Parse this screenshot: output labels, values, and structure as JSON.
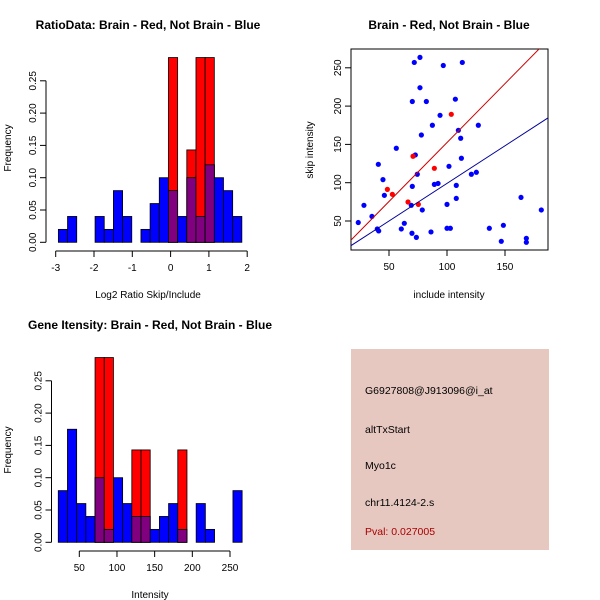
{
  "colors": {
    "brain": "#ff0000",
    "not_brain": "#0000ff",
    "overlap": "#800080",
    "brain_line": "#cc0000",
    "not_brain_line": "#000099",
    "panel": "#e6c8c0",
    "pval": "#aa0000"
  },
  "chart_data": [
    {
      "type": "bar",
      "title": "RatioData: Brain - Red, Not Brain - Blue",
      "xlabel": "Log2 Ratio Skip/Include",
      "ylabel": "Frequency",
      "bin_start": -2.93,
      "bin_width": 0.2395,
      "xlim": [
        -3,
        2
      ],
      "ylim": [
        0,
        0.286
      ],
      "xticks": [
        -3,
        -2,
        -1,
        0,
        1,
        2
      ],
      "yticks": [
        0,
        0.05,
        0.1,
        0.15,
        0.2,
        0.25
      ],
      "ytick_labels": [
        "0.00",
        "0.05",
        "0.10",
        "0.15",
        "0.20",
        "0.25"
      ],
      "series": [
        {
          "name": "Not Brain",
          "color": "blue",
          "values": [
            0.02,
            0.04,
            0,
            0,
            0.04,
            0.02,
            0.08,
            0.04,
            0,
            0.02,
            0.06,
            0.1,
            0.08,
            0.04,
            0.1,
            0.04,
            0.12,
            0.1,
            0.08,
            0.04
          ]
        },
        {
          "name": "Brain",
          "color": "red",
          "values": [
            0,
            0,
            0,
            0,
            0,
            0,
            0,
            0,
            0,
            0,
            0,
            0,
            0.286,
            0,
            0.143,
            0.286,
            0.286,
            0,
            0,
            0
          ]
        }
      ]
    },
    {
      "type": "scatter",
      "title": "Brain - Red, Not Brain - Blue",
      "xlabel": "include intensity",
      "ylabel": "skip intensity",
      "xlim": [
        17,
        187
      ],
      "ylim": [
        12,
        274
      ],
      "xticks": [
        50,
        100,
        150
      ],
      "yticks": [
        50,
        100,
        150,
        200,
        250
      ],
      "series": [
        {
          "name": "Not Brain",
          "color": "blue",
          "fit": {
            "slope": 0.982,
            "intercept": 0.9
          },
          "points": [
            [
              23.5,
              48
            ],
            [
              28.4,
              70.5
            ],
            [
              35.3,
              56
            ],
            [
              39.9,
              39.6
            ],
            [
              41.1,
              37
            ],
            [
              40.8,
              124
            ],
            [
              44.8,
              104
            ],
            [
              46,
              83.5
            ],
            [
              56.3,
              145
            ],
            [
              60.6,
              39.6
            ],
            [
              63.2,
              47
            ],
            [
              69.8,
              34
            ],
            [
              73.6,
              28.6
            ],
            [
              69.2,
              70.5
            ],
            [
              70.1,
              95.2
            ],
            [
              70.1,
              206
            ],
            [
              71.8,
              257
            ],
            [
              76.7,
              263.6
            ],
            [
              76.7,
              224
            ],
            [
              82.2,
              206
            ],
            [
              72.7,
              136.2
            ],
            [
              74.4,
              111
            ],
            [
              77.9,
              162.3
            ],
            [
              78.7,
              64.4
            ],
            [
              86.2,
              35.7
            ],
            [
              87.4,
              175
            ],
            [
              89.1,
              97.8
            ],
            [
              92.3,
              99
            ],
            [
              94,
              188
            ],
            [
              96.8,
              253
            ],
            [
              100,
              71.7
            ],
            [
              101.7,
              121.4
            ],
            [
              100,
              40.5
            ],
            [
              102.9,
              40.5
            ],
            [
              107.2,
              209
            ],
            [
              108,
              96.5
            ],
            [
              108,
              79.5
            ],
            [
              109.8,
              168.4
            ],
            [
              111.8,
              158
            ],
            [
              112.4,
              131.9
            ],
            [
              113.2,
              257
            ],
            [
              121,
              111
            ],
            [
              125.3,
              113.6
            ],
            [
              127,
              175
            ],
            [
              136.5,
              40.5
            ],
            [
              146.8,
              23.5
            ],
            [
              148.6,
              44.4
            ],
            [
              163.8,
              80.8
            ],
            [
              168.4,
              27.4
            ],
            [
              168.4,
              22.2
            ],
            [
              181.3,
              64.4
            ]
          ]
        },
        {
          "name": "Brain",
          "color": "red",
          "fit": {
            "slope": 1.539,
            "intercept": -1.5
          },
          "points": [
            [
              48.6,
              91.3
            ],
            [
              52.9,
              84.8
            ],
            [
              66.4,
              74.8
            ],
            [
              75.3,
              71.7
            ],
            [
              70.7,
              134.5
            ],
            [
              89.1,
              118.8
            ],
            [
              103.7,
              189.3
            ]
          ]
        }
      ]
    },
    {
      "type": "bar",
      "title": "Gene Itensity: Brain - Red, Not Brain - Blue",
      "xlabel": "Intensity",
      "ylabel": "Frequency",
      "bin_start": 22.1,
      "bin_width": 12.2,
      "xlim": [
        22,
        266
      ],
      "ylim": [
        0,
        0.286
      ],
      "xticks": [
        50,
        100,
        150,
        200,
        250
      ],
      "yticks": [
        0,
        0.05,
        0.1,
        0.15,
        0.2,
        0.25
      ],
      "ytick_labels": [
        "0.00",
        "0.05",
        "0.10",
        "0.15",
        "0.20",
        "0.25"
      ],
      "series": [
        {
          "name": "Not Brain",
          "color": "blue",
          "values": [
            0.08,
            0.175,
            0.06,
            0.04,
            0.1,
            0.02,
            0.1,
            0.06,
            0.04,
            0.04,
            0.02,
            0.04,
            0.06,
            0.02,
            0,
            0.06,
            0.02,
            0,
            0,
            0.08
          ]
        },
        {
          "name": "Brain",
          "color": "red",
          "values": [
            0,
            0,
            0,
            0,
            0.286,
            0.286,
            0,
            0,
            0.143,
            0.143,
            0,
            0,
            0,
            0.143,
            0,
            0,
            0,
            0,
            0,
            0
          ]
        }
      ]
    }
  ],
  "info": {
    "probe": "G6927808@J913096@i_at",
    "event": "altTxStart",
    "gene": "Myo1c",
    "region": "chr11.4124-2.s",
    "pval": "Pval: 0.027005"
  }
}
